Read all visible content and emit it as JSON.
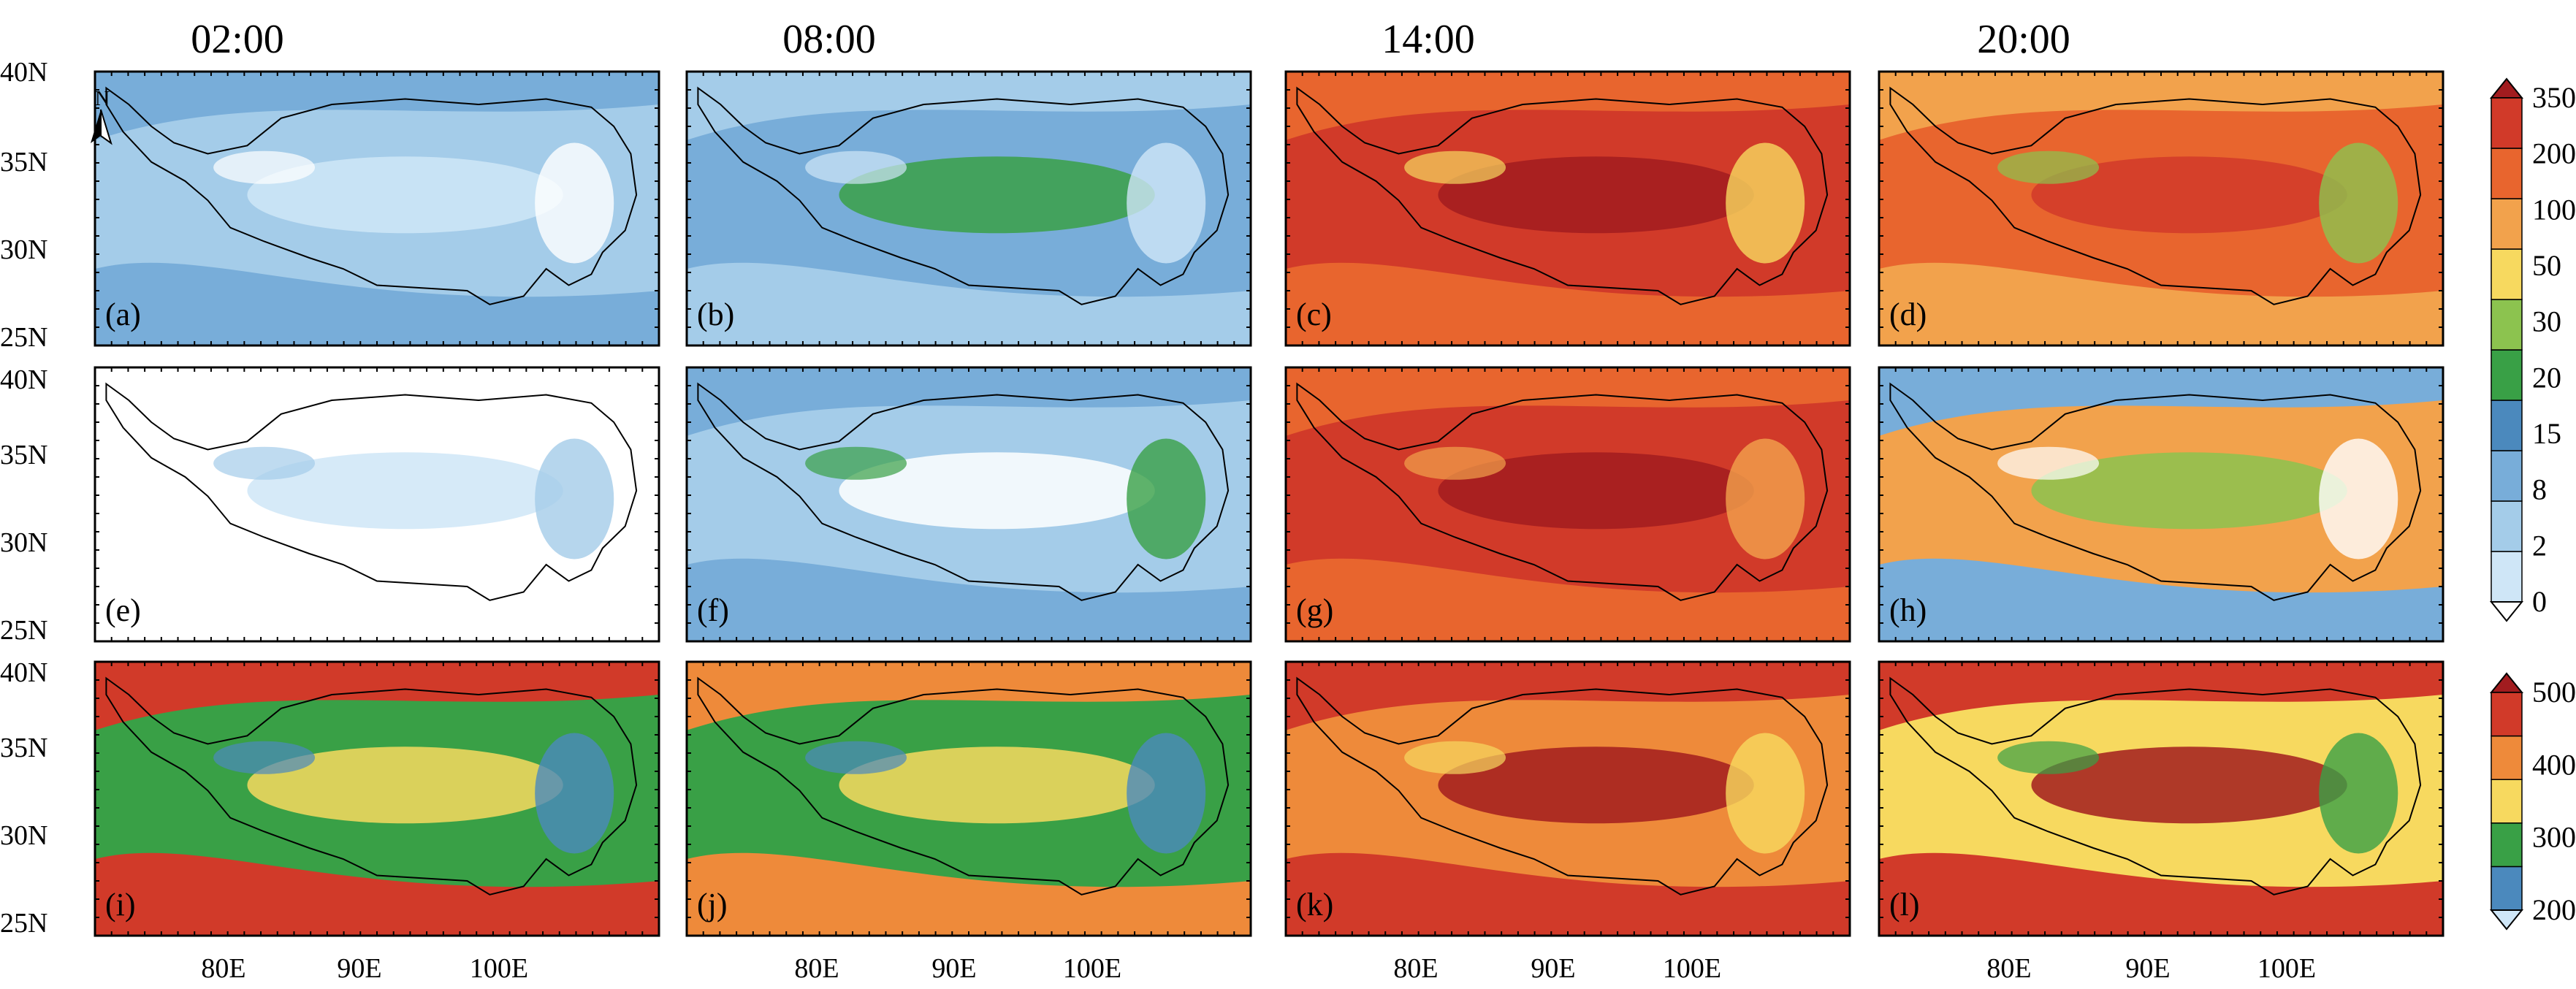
{
  "column_titles": [
    "02:00",
    "08:00",
    "14:00",
    "20:00"
  ],
  "lat_labels": [
    "40N",
    "35N",
    "30N",
    "25N"
  ],
  "lon_labels": [
    "80E",
    "90E",
    "100E"
  ],
  "north_arrow_label": "N",
  "panel_labels": [
    "(a)",
    "(b)",
    "(c)",
    "(d)",
    "(e)",
    "(f)",
    "(g)",
    "(h)",
    "(i)",
    "(j)",
    "(k)",
    "(l)"
  ],
  "colorbar_top": {
    "labels": [
      "0",
      "2",
      "8",
      "15",
      "20",
      "30",
      "50",
      "100",
      "200",
      "350"
    ],
    "colors": [
      "#ffffff",
      "#cfe6f7",
      "#a4cce9",
      "#78add9",
      "#4b89bd",
      "#39a046",
      "#8cc34f",
      "#f7d95f",
      "#f2a24c",
      "#e8652e",
      "#d13a29",
      "#a21c1f"
    ]
  },
  "colorbar_bottom": {
    "labels": [
      "200",
      "300",
      "400",
      "500"
    ],
    "colors": [
      "#cfe6f7",
      "#4b89bd",
      "#39a046",
      "#f7d95f",
      "#ee8a3a",
      "#d13a29",
      "#a21c1f"
    ]
  }
}
